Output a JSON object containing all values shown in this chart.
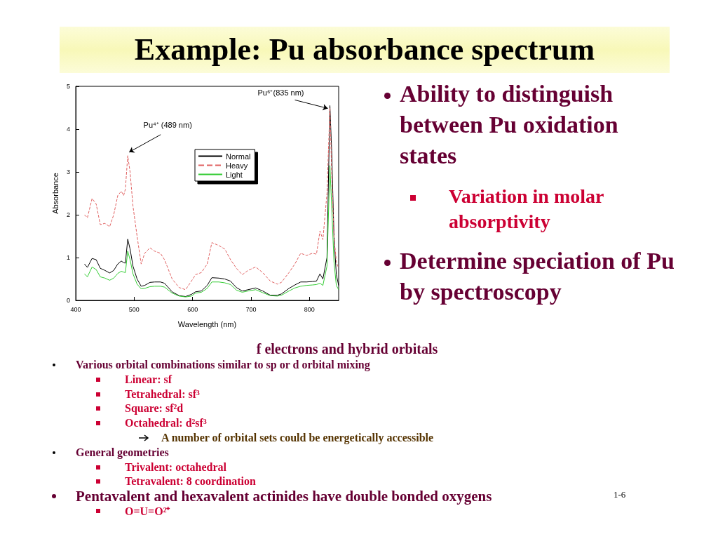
{
  "chart_data": {
    "type": "line",
    "title": "Example: Pu absorbance spectrum",
    "xlabel": "Wavelength (nm)",
    "ylabel": "Absorbance",
    "x": [
      415,
      420,
      428,
      435,
      442,
      450,
      458,
      465,
      472,
      478,
      482,
      485,
      489,
      493,
      498,
      505,
      512,
      518,
      527,
      535,
      545,
      552,
      565,
      577,
      588,
      598,
      605,
      615,
      625,
      633,
      645,
      655,
      665,
      675,
      685,
      695,
      708,
      720,
      733,
      745,
      752,
      765,
      775,
      785,
      795,
      805,
      812,
      818,
      823,
      830,
      835,
      838,
      842,
      846,
      850
    ],
    "series": [
      {
        "name": "Normal",
        "color": "#000000",
        "values": [
          0.85,
          0.77,
          0.98,
          0.95,
          0.75,
          0.7,
          0.64,
          0.7,
          0.85,
          0.92,
          0.88,
          0.87,
          1.43,
          1.2,
          0.8,
          0.5,
          0.33,
          0.35,
          0.42,
          0.43,
          0.43,
          0.4,
          0.2,
          0.11,
          0.09,
          0.14,
          0.2,
          0.22,
          0.35,
          0.53,
          0.52,
          0.5,
          0.45,
          0.3,
          0.22,
          0.25,
          0.29,
          0.22,
          0.12,
          0.12,
          0.15,
          0.28,
          0.36,
          0.43,
          0.43,
          0.44,
          0.45,
          0.62,
          0.5,
          1.0,
          4.55,
          3.5,
          1.5,
          0.6,
          0.35
        ]
      },
      {
        "name": "Heavy",
        "color": "#e06060",
        "line_style": "dashed",
        "values": [
          2.0,
          1.93,
          2.38,
          2.25,
          1.77,
          1.8,
          1.72,
          2.0,
          2.45,
          2.55,
          2.45,
          2.6,
          3.38,
          3.0,
          2.2,
          1.5,
          0.85,
          1.1,
          1.23,
          1.15,
          1.1,
          0.95,
          0.5,
          0.3,
          0.25,
          0.45,
          0.6,
          0.65,
          0.85,
          1.35,
          1.28,
          1.2,
          0.95,
          0.75,
          0.6,
          0.7,
          0.78,
          0.65,
          0.45,
          0.38,
          0.42,
          0.65,
          0.85,
          1.1,
          1.05,
          1.1,
          1.08,
          1.62,
          1.42,
          2.5,
          4.5,
          3.0,
          1.5,
          0.9,
          0.75
        ]
      },
      {
        "name": "Light",
        "color": "#33cc33",
        "values": [
          0.62,
          0.55,
          0.78,
          0.72,
          0.55,
          0.52,
          0.47,
          0.52,
          0.63,
          0.68,
          0.66,
          0.65,
          1.15,
          0.95,
          0.62,
          0.38,
          0.27,
          0.28,
          0.32,
          0.33,
          0.33,
          0.31,
          0.17,
          0.1,
          0.08,
          0.1,
          0.17,
          0.19,
          0.28,
          0.43,
          0.43,
          0.41,
          0.37,
          0.24,
          0.19,
          0.22,
          0.25,
          0.18,
          0.11,
          0.1,
          0.12,
          0.22,
          0.29,
          0.33,
          0.35,
          0.36,
          0.37,
          0.4,
          0.35,
          0.8,
          3.15,
          2.2,
          0.9,
          0.35,
          0.25
        ]
      }
    ],
    "xlim": [
      400,
      850
    ],
    "xticks": [
      400,
      500,
      600,
      700,
      800
    ],
    "ylim": [
      0,
      5
    ],
    "yticks": [
      0,
      1,
      2,
      3,
      4,
      5
    ],
    "legend": "top right",
    "line_style": "solid",
    "annotations": [
      {
        "text": "Pu⁴⁺ (489 nm)",
        "x": 489,
        "y": 3.38
      },
      {
        "text": "Pu⁶⁺(835 nm)",
        "x": 835,
        "y": 4.55
      },
      "Ability to distinguish between Pu oxidation states",
      "Variation in molar absorptivity",
      "Determine speciation of Pu by spectroscopy",
      "f electrons and hybrid orbitals",
      "Various orbital combinations similar to sp or d orbital mixing",
      "Linear:  sf",
      "Tetrahedral:  sf³",
      "Square:  sf²d",
      "Octahedral:  d²sf³",
      "A number of orbital sets could be energetically accessible",
      "General geometries",
      "Trivalent:  octahedral",
      "Tetravalent:  8 coordination",
      "Pentavalent and hexavalent actinides have double bonded oxygens",
      "O=U=O²⁺",
      "1-6"
    ]
  }
}
